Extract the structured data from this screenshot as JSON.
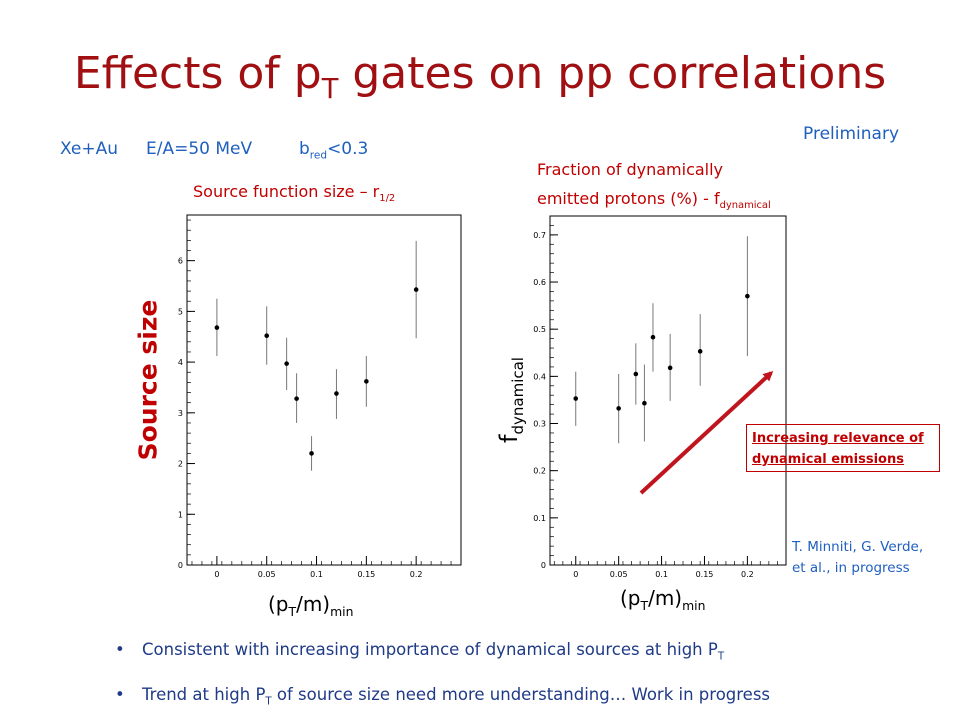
{
  "title_main": "Effects of p",
  "title_sub": "T",
  "title_rest": " gates on pp correlations",
  "preliminary": "Preliminary",
  "conditions": {
    "system": "Xe+Au",
    "energy": "E/A=50 MeV",
    "b_main": "b",
    "b_sub": "red",
    "b_rest": "<0.3"
  },
  "left_subtitle": {
    "main": "Source function size – r",
    "sub": "1/2"
  },
  "right_subtitle": {
    "line1": "Fraction of dynamically",
    "line2_main": "emitted protons (%) - f",
    "line2_sub": "dynamical"
  },
  "left_ylabel": "Source size",
  "right_ylabel": {
    "main": "f",
    "sub": "dynamical"
  },
  "xlabel": {
    "pre": "(p",
    "sub1": "T",
    "mid": "/m)",
    "sub2": "min"
  },
  "annotation": {
    "line1": "Increasing relevance of",
    "line2": "dynamical emissions"
  },
  "reference": {
    "line1": "T. Minniti, G. Verde,",
    "line2": "et al., in progress"
  },
  "bullets": [
    {
      "pre": "Consistent with increasing importance of dynamical sources at high P",
      "sub": "T",
      "post": ""
    },
    {
      "pre": "Trend at high P",
      "sub": "T",
      "post": " of source size need more understanding… Work in progress"
    }
  ],
  "colors": {
    "title": "#a00f12",
    "blue_text": "#1f5fbf",
    "red_text": "#c00000",
    "arrow": "#c0141e"
  },
  "chart_data": [
    {
      "type": "scatter",
      "title": "Source function size – r1/2",
      "ylabel": "Source size",
      "xlabel": "(pT/m)min",
      "xlim": [
        -0.03,
        0.245
      ],
      "ylim": [
        0,
        6.9
      ],
      "xticks": [
        "0",
        "0.05",
        "0.1",
        "0.15",
        "0.2"
      ],
      "yticks": [
        "0",
        "1",
        "2",
        "3",
        "4",
        "5",
        "6"
      ],
      "points": [
        {
          "x": 0.0,
          "y": 4.68,
          "lo": 4.12,
          "hi": 5.25
        },
        {
          "x": 0.05,
          "y": 4.52,
          "lo": 3.95,
          "hi": 5.1
        },
        {
          "x": 0.07,
          "y": 3.97,
          "lo": 3.45,
          "hi": 4.48
        },
        {
          "x": 0.08,
          "y": 3.28,
          "lo": 2.8,
          "hi": 3.78
        },
        {
          "x": 0.095,
          "y": 2.2,
          "lo": 1.86,
          "hi": 2.54
        },
        {
          "x": 0.12,
          "y": 3.38,
          "lo": 2.88,
          "hi": 3.86
        },
        {
          "x": 0.15,
          "y": 3.62,
          "lo": 3.12,
          "hi": 4.12
        },
        {
          "x": 0.2,
          "y": 5.43,
          "lo": 4.47,
          "hi": 6.39
        }
      ]
    },
    {
      "type": "scatter",
      "title": "Fraction of dynamically emitted protons (%) - fdynamical",
      "ylabel": "fdynamical",
      "xlabel": "(pT/m)min",
      "xlim": [
        -0.03,
        0.245
      ],
      "ylim": [
        0,
        0.74
      ],
      "xticks": [
        "0",
        "0.05",
        "0.1",
        "0.15",
        "0.2"
      ],
      "yticks": [
        "0",
        "0.1",
        "0.2",
        "0.3",
        "0.4",
        "0.5",
        "0.6",
        "0.7"
      ],
      "points": [
        {
          "x": 0.0,
          "y": 0.353,
          "lo": 0.295,
          "hi": 0.41
        },
        {
          "x": 0.05,
          "y": 0.332,
          "lo": 0.258,
          "hi": 0.405
        },
        {
          "x": 0.07,
          "y": 0.405,
          "lo": 0.34,
          "hi": 0.47
        },
        {
          "x": 0.08,
          "y": 0.343,
          "lo": 0.262,
          "hi": 0.425
        },
        {
          "x": 0.09,
          "y": 0.483,
          "lo": 0.41,
          "hi": 0.555
        },
        {
          "x": 0.11,
          "y": 0.418,
          "lo": 0.348,
          "hi": 0.49
        },
        {
          "x": 0.145,
          "y": 0.453,
          "lo": 0.38,
          "hi": 0.532
        },
        {
          "x": 0.2,
          "y": 0.57,
          "lo": 0.443,
          "hi": 0.697
        }
      ]
    }
  ]
}
